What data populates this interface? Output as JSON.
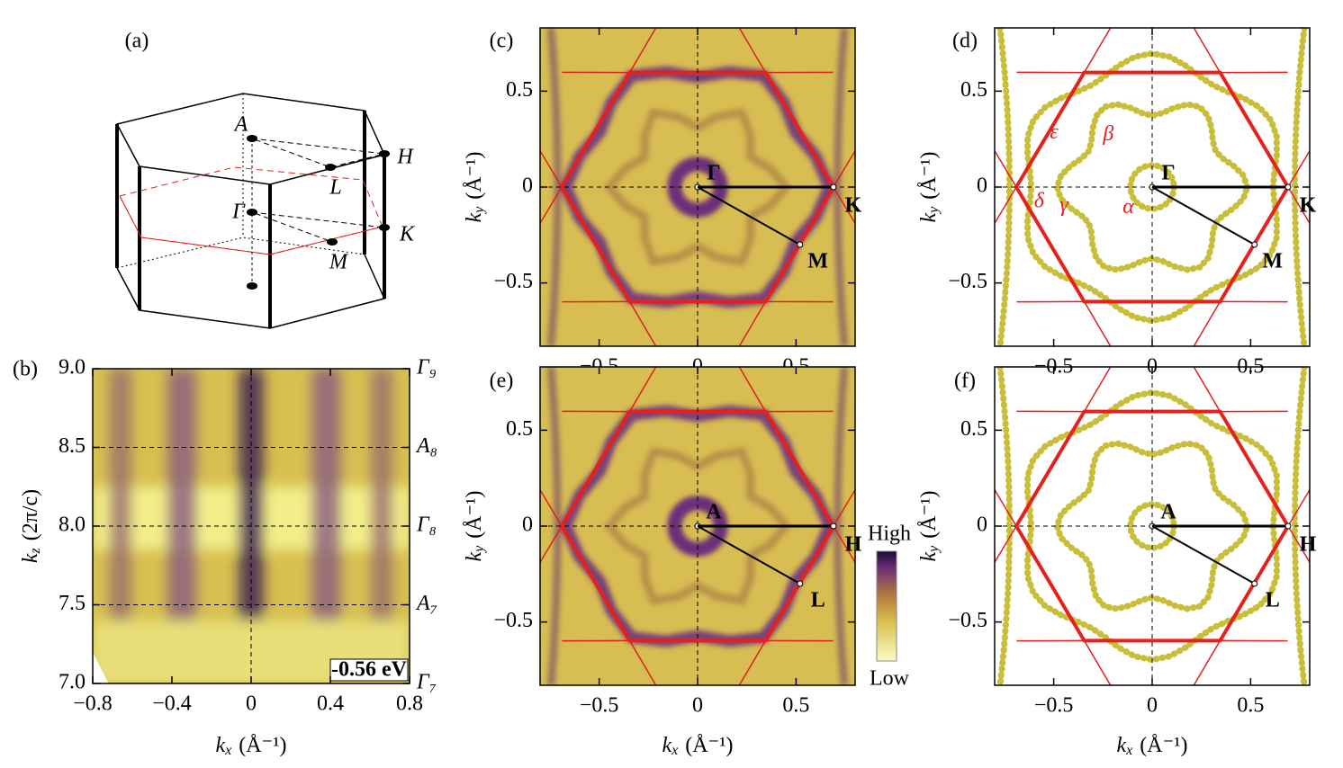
{
  "chart_data": [
    {
      "type": "diagram",
      "panel": "(a)",
      "labels": [
        "A",
        "H",
        "L",
        "Γ",
        "K",
        "M"
      ]
    },
    {
      "type": "heatmap",
      "panel": "(b)",
      "xlabel": {
        "symbol": "k",
        "sub": "x",
        "unit": "(Å⁻¹)"
      },
      "ylabel": {
        "symbol": "k",
        "sub": "z",
        "unit": "(2π/c)"
      },
      "xlim": [
        -0.8,
        0.8
      ],
      "xticks": [
        {
          "value": -0.8,
          "label": "−0.8"
        },
        {
          "value": -0.4,
          "label": "−0.4"
        },
        0,
        0.4,
        0.8
      ],
      "ylim": [
        7,
        9
      ],
      "yticks": [
        {
          "value": 7,
          "label": "7.0"
        },
        7.5,
        {
          "value": 8,
          "label": "8.0"
        },
        8.5,
        {
          "value": 9,
          "label": "9.0"
        }
      ],
      "right_labels": [
        {
          "value": 9,
          "label": "Γ₉"
        },
        {
          "value": 8.5,
          "label": "A₈"
        },
        {
          "value": 8,
          "label": "Γ₈"
        },
        {
          "value": 7.5,
          "label": "A₇"
        },
        {
          "value": 7,
          "label": "Γ₇"
        }
      ],
      "annotation": "-0.56 eV"
    },
    {
      "type": "heatmap",
      "panel": "(c)",
      "ylabel": {
        "symbol": "k",
        "sub": "y",
        "unit": "(Å⁻¹)"
      },
      "xlim": [
        -0.8,
        0.8
      ],
      "xticks": [
        {
          "value": -0.5,
          "label": "−0.5"
        },
        0,
        0.5
      ],
      "ylim": [
        -0.83,
        0.83
      ],
      "yticks": [
        {
          "value": -0.5,
          "label": "−0.5"
        },
        0,
        0.5
      ],
      "zone_boundary": 0.69,
      "points": [
        {
          "label": "Γ",
          "x": 0,
          "y": 0
        },
        {
          "label": "K",
          "x": 0.69,
          "y": 0
        },
        {
          "label": "M",
          "x": 0.52,
          "y": -0.3
        }
      ]
    },
    {
      "type": "scatter",
      "panel": "(d)",
      "ylabel": {
        "symbol": "k",
        "sub": "y",
        "unit": "(Å⁻¹)"
      },
      "xlim": [
        -0.8,
        0.8
      ],
      "xticks": [
        {
          "value": -0.5,
          "label": "−0.5"
        },
        0,
        0.5
      ],
      "ylim": [
        -0.83,
        0.83
      ],
      "yticks": [
        {
          "value": -0.5,
          "label": "−0.5"
        },
        0,
        0.5
      ],
      "zone_boundary": 0.69,
      "points": [
        {
          "label": "Γ",
          "x": 0,
          "y": 0
        },
        {
          "label": "K",
          "x": 0.69,
          "y": 0
        },
        {
          "label": "M",
          "x": 0.52,
          "y": -0.3
        }
      ],
      "band_labels": [
        "ε",
        "β",
        "δ",
        "γ",
        "α"
      ]
    },
    {
      "type": "heatmap",
      "panel": "(e)",
      "xlabel": {
        "symbol": "k",
        "sub": "x",
        "unit": "(Å⁻¹)"
      },
      "ylabel": {
        "symbol": "k",
        "sub": "y",
        "unit": "(Å⁻¹)"
      },
      "xlim": [
        -0.8,
        0.8
      ],
      "xticks": [
        {
          "value": -0.5,
          "label": "−0.5"
        },
        0,
        0.5
      ],
      "ylim": [
        -0.83,
        0.83
      ],
      "yticks": [
        {
          "value": -0.5,
          "label": "−0.5"
        },
        0,
        0.5
      ],
      "zone_boundary": 0.69,
      "points": [
        {
          "label": "A",
          "x": 0,
          "y": 0
        },
        {
          "label": "H",
          "x": 0.69,
          "y": 0
        },
        {
          "label": "L",
          "x": 0.52,
          "y": -0.3
        }
      ],
      "colorbar": {
        "high": "High",
        "low": "Low"
      }
    },
    {
      "type": "scatter",
      "panel": "(f)",
      "xlabel": {
        "symbol": "k",
        "sub": "x",
        "unit": "(Å⁻¹)"
      },
      "ylabel": {
        "symbol": "k",
        "sub": "y",
        "unit": "(Å⁻¹)"
      },
      "xlim": [
        -0.8,
        0.8
      ],
      "xticks": [
        {
          "value": -0.5,
          "label": "−0.5"
        },
        0,
        0.5
      ],
      "ylim": [
        -0.83,
        0.83
      ],
      "yticks": [
        {
          "value": -0.5,
          "label": "−0.5"
        },
        0,
        0.5
      ],
      "zone_boundary": 0.69,
      "points": [
        {
          "label": "A",
          "x": 0,
          "y": 0
        },
        {
          "label": "H",
          "x": 0.69,
          "y": 0
        },
        {
          "label": "L",
          "x": 0.52,
          "y": -0.3
        }
      ]
    }
  ]
}
